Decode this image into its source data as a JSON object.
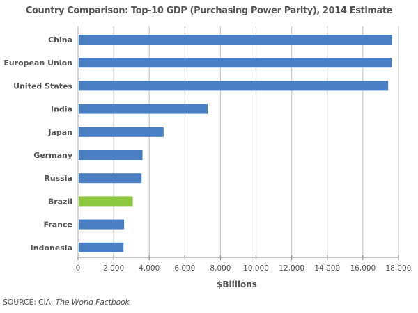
{
  "chart_data": {
    "type": "bar",
    "orientation": "horizontal",
    "title": "Country Comparison: Top-10 GDP (Purchasing Power Parity), 2014 Estimate",
    "xlabel": "$Billions",
    "ylabel": "",
    "xlim": [
      0,
      18000
    ],
    "x_ticks": [
      0,
      2000,
      4000,
      6000,
      8000,
      10000,
      12000,
      14000,
      16000,
      18000
    ],
    "x_tick_labels": [
      "0",
      "2,000",
      "4,000",
      "6,000",
      "8,000",
      "10,000",
      "12,000",
      "14,000",
      "16,000",
      "18,000"
    ],
    "grid": "vertical",
    "categories": [
      "China",
      "European Union",
      "United States",
      "India",
      "Japan",
      "Germany",
      "Russia",
      "Brazil",
      "France",
      "Indonesia"
    ],
    "values": [
      17630,
      17610,
      17420,
      7277,
      4807,
      3621,
      3568,
      3073,
      2587,
      2554
    ],
    "highlight": "Brazil",
    "colors": {
      "default": "#4a7ec2",
      "highlight": "#8dc63f",
      "grid": "#c8c8c8",
      "text": "#555555"
    }
  },
  "source": {
    "prefix": "SOURCE: CIA, ",
    "publication": "The World Factbook"
  }
}
